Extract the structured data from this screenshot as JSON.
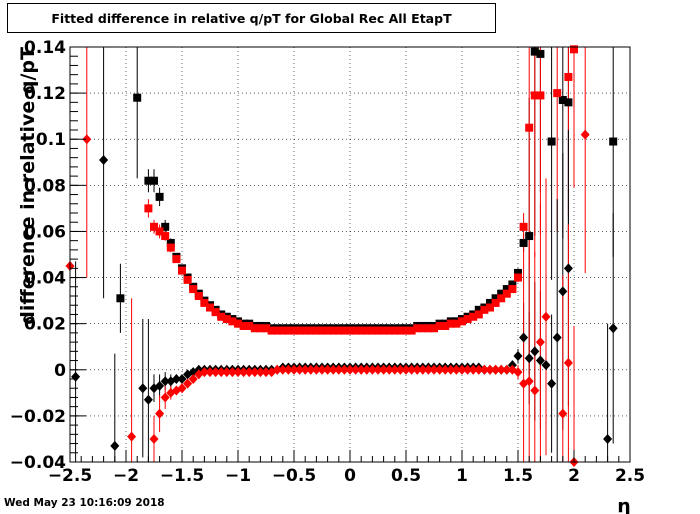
{
  "title": "Fitted difference in relative q/pT for Global Rec All EtapT",
  "timestamp": "Wed May 23 10:16:09 2018",
  "chart_data": {
    "type": "scatter",
    "title": "Fitted difference in relative q/pT for Global Rec All EtapT",
    "xlabel": "η",
    "ylabel": "difference in relative q/pT",
    "xlim": [
      -2.5,
      2.5
    ],
    "ylim": [
      -0.04,
      0.14
    ],
    "x_ticks": [
      -2.5,
      -2,
      -1.5,
      -1,
      -0.5,
      0,
      0.5,
      1,
      1.5,
      2,
      2.5
    ],
    "x_tick_labels": [
      "−2.5",
      "−2",
      "−1.5",
      "−1",
      "−0.5",
      "0",
      "0.5",
      "1",
      "1.5",
      "2",
      "2.5"
    ],
    "y_ticks": [
      -0.04,
      -0.02,
      0,
      0.02,
      0.04,
      0.06,
      0.08,
      0.1,
      0.12,
      0.14
    ],
    "y_tick_labels": [
      "−0.04",
      "−0.02",
      "0",
      "0.02",
      "0.04",
      "0.06",
      "0.08",
      "0.1",
      "0.12",
      "0.14"
    ],
    "grid": true,
    "colors": {
      "black": "#000000",
      "red": "#ff0000"
    },
    "series": [
      {
        "marker": "square",
        "color": "#000000",
        "x": [
          -2.05,
          -1.9,
          -1.8,
          -1.75,
          -1.7,
          -1.65,
          -1.6,
          -1.55,
          -1.5,
          -1.45,
          -1.4,
          -1.35,
          -1.3,
          -1.25,
          -1.2,
          -1.15,
          -1.1,
          -1.05,
          -1.0,
          -0.95,
          -0.9,
          -0.85,
          -0.8,
          -0.75,
          -0.7,
          -0.65,
          -0.6,
          -0.55,
          -0.5,
          -0.45,
          -0.4,
          -0.35,
          -0.3,
          -0.25,
          -0.2,
          -0.15,
          -0.1,
          -0.05,
          0.0,
          0.05,
          0.1,
          0.15,
          0.2,
          0.25,
          0.3,
          0.35,
          0.4,
          0.45,
          0.5,
          0.55,
          0.6,
          0.65,
          0.7,
          0.75,
          0.8,
          0.85,
          0.9,
          0.95,
          1.0,
          1.05,
          1.1,
          1.15,
          1.2,
          1.25,
          1.3,
          1.35,
          1.4,
          1.45,
          1.5,
          1.55,
          1.6,
          1.65,
          1.7,
          1.8,
          1.9,
          1.95,
          2.35
        ],
        "y": [
          0.031,
          0.118,
          0.082,
          0.082,
          0.075,
          0.062,
          0.055,
          0.049,
          0.044,
          0.04,
          0.036,
          0.033,
          0.03,
          0.028,
          0.026,
          0.024,
          0.023,
          0.022,
          0.021,
          0.02,
          0.02,
          0.019,
          0.019,
          0.019,
          0.018,
          0.018,
          0.018,
          0.018,
          0.018,
          0.018,
          0.018,
          0.018,
          0.018,
          0.018,
          0.018,
          0.018,
          0.018,
          0.018,
          0.018,
          0.018,
          0.018,
          0.018,
          0.018,
          0.018,
          0.018,
          0.018,
          0.018,
          0.018,
          0.018,
          0.018,
          0.019,
          0.019,
          0.019,
          0.019,
          0.02,
          0.02,
          0.021,
          0.021,
          0.022,
          0.023,
          0.024,
          0.026,
          0.027,
          0.029,
          0.031,
          0.033,
          0.035,
          0.037,
          0.042,
          0.055,
          0.058,
          0.138,
          0.137,
          0.099,
          0.117,
          0.116,
          0.099
        ],
        "err": [
          0.015,
          0.035,
          0.005,
          0.005,
          0.004,
          0.003,
          0.002,
          0.001,
          0.001,
          0.001,
          0.001,
          0.001,
          0.001,
          0.001,
          0.001,
          0.0,
          0.0,
          0.0,
          0.0,
          0.0,
          0.0,
          0.0,
          0.0,
          0.0,
          0.0,
          0.0,
          0.0,
          0.0,
          0.0,
          0.0,
          0.0,
          0.0,
          0.0,
          0.0,
          0.0,
          0.0,
          0.0,
          0.0,
          0.0,
          0.0,
          0.0,
          0.0,
          0.0,
          0.0,
          0.0,
          0.0,
          0.0,
          0.0,
          0.0,
          0.0,
          0.0,
          0.0,
          0.0,
          0.0,
          0.0,
          0.0,
          0.0,
          0.0,
          0.0,
          0.0,
          0.0,
          0.0,
          0.0,
          0.0,
          0.0,
          0.001,
          0.001,
          0.001,
          0.002,
          0.004,
          0.06,
          0.08,
          0.06,
          0.06,
          0.06,
          0.06,
          0.05
        ]
      },
      {
        "marker": "square",
        "color": "#ff0000",
        "x": [
          -1.8,
          -1.75,
          -1.7,
          -1.65,
          -1.6,
          -1.55,
          -1.5,
          -1.45,
          -1.4,
          -1.35,
          -1.3,
          -1.25,
          -1.2,
          -1.15,
          -1.1,
          -1.05,
          -1.0,
          -0.95,
          -0.9,
          -0.85,
          -0.8,
          -0.75,
          -0.7,
          -0.65,
          -0.6,
          -0.55,
          -0.5,
          -0.45,
          -0.4,
          -0.35,
          -0.3,
          -0.25,
          -0.2,
          -0.15,
          -0.1,
          -0.05,
          0.0,
          0.05,
          0.1,
          0.15,
          0.2,
          0.25,
          0.3,
          0.35,
          0.4,
          0.45,
          0.5,
          0.55,
          0.6,
          0.65,
          0.7,
          0.75,
          0.8,
          0.85,
          0.9,
          0.95,
          1.0,
          1.05,
          1.1,
          1.15,
          1.2,
          1.25,
          1.3,
          1.35,
          1.4,
          1.45,
          1.5,
          1.55,
          1.6,
          1.65,
          1.7,
          1.85,
          1.95,
          2.0
        ],
        "y": [
          0.07,
          0.062,
          0.06,
          0.058,
          0.053,
          0.048,
          0.043,
          0.039,
          0.035,
          0.032,
          0.029,
          0.027,
          0.025,
          0.023,
          0.022,
          0.021,
          0.02,
          0.019,
          0.019,
          0.018,
          0.018,
          0.018,
          0.017,
          0.017,
          0.017,
          0.017,
          0.017,
          0.017,
          0.017,
          0.017,
          0.017,
          0.017,
          0.017,
          0.017,
          0.017,
          0.017,
          0.017,
          0.017,
          0.017,
          0.017,
          0.017,
          0.017,
          0.017,
          0.017,
          0.017,
          0.017,
          0.017,
          0.017,
          0.018,
          0.018,
          0.018,
          0.018,
          0.019,
          0.019,
          0.02,
          0.02,
          0.021,
          0.022,
          0.023,
          0.024,
          0.026,
          0.027,
          0.029,
          0.031,
          0.033,
          0.035,
          0.04,
          0.062,
          0.105,
          0.119,
          0.119,
          0.12,
          0.127,
          0.139
        ],
        "err": [
          0.004,
          0.003,
          0.003,
          0.002,
          0.002,
          0.001,
          0.001,
          0.001,
          0.001,
          0.001,
          0.001,
          0.001,
          0.001,
          0.0,
          0.0,
          0.0,
          0.0,
          0.0,
          0.0,
          0.0,
          0.0,
          0.0,
          0.0,
          0.0,
          0.0,
          0.0,
          0.0,
          0.0,
          0.0,
          0.0,
          0.0,
          0.0,
          0.0,
          0.0,
          0.0,
          0.0,
          0.0,
          0.0,
          0.0,
          0.0,
          0.0,
          0.0,
          0.0,
          0.0,
          0.0,
          0.0,
          0.0,
          0.0,
          0.0,
          0.0,
          0.0,
          0.0,
          0.0,
          0.0,
          0.0,
          0.0,
          0.0,
          0.0,
          0.0,
          0.0,
          0.0,
          0.0,
          0.0,
          0.001,
          0.001,
          0.001,
          0.002,
          0.006,
          0.06,
          0.07,
          0.06,
          0.06,
          0.06,
          0.06
        ]
      },
      {
        "marker": "diamond",
        "color": "#000000",
        "x": [
          -2.45,
          -2.2,
          -2.1,
          -1.85,
          -1.8,
          -1.75,
          -1.7,
          -1.65,
          -1.6,
          -1.55,
          -1.5,
          -1.45,
          -1.4,
          -1.35,
          -1.3,
          -1.25,
          -1.2,
          -1.15,
          -1.1,
          -1.05,
          -1.0,
          -0.95,
          -0.9,
          -0.85,
          -0.8,
          -0.75,
          -0.7,
          -0.65,
          -0.6,
          -0.55,
          -0.5,
          -0.45,
          -0.4,
          -0.35,
          -0.3,
          -0.25,
          -0.2,
          -0.15,
          -0.1,
          -0.05,
          0.0,
          0.05,
          0.1,
          0.15,
          0.2,
          0.25,
          0.3,
          0.35,
          0.4,
          0.45,
          0.5,
          0.55,
          0.6,
          0.65,
          0.7,
          0.75,
          0.8,
          0.85,
          0.9,
          0.95,
          1.0,
          1.05,
          1.1,
          1.15,
          1.2,
          1.25,
          1.3,
          1.35,
          1.4,
          1.45,
          1.5,
          1.55,
          1.6,
          1.65,
          1.7,
          1.75,
          1.8,
          1.85,
          1.9,
          1.95,
          2.3,
          2.35
        ],
        "y": [
          -0.003,
          0.091,
          -0.033,
          -0.008,
          -0.013,
          -0.008,
          -0.007,
          -0.005,
          -0.005,
          -0.004,
          -0.004,
          -0.002,
          -0.001,
          0.0,
          0.0,
          0.0,
          0.0,
          0.0,
          0.0,
          0.0,
          0.0,
          0.0,
          0.0,
          0.0,
          0.0,
          0.0,
          0.0,
          0.0,
          0.001,
          0.001,
          0.001,
          0.001,
          0.001,
          0.001,
          0.001,
          0.001,
          0.001,
          0.001,
          0.001,
          0.001,
          0.001,
          0.001,
          0.001,
          0.001,
          0.001,
          0.001,
          0.001,
          0.001,
          0.001,
          0.001,
          0.001,
          0.001,
          0.001,
          0.001,
          0.001,
          0.001,
          0.001,
          0.001,
          0.001,
          0.001,
          0.001,
          0.001,
          0.001,
          0.001,
          0.0,
          0.0,
          0.0,
          0.0,
          0.0,
          0.002,
          0.006,
          0.014,
          0.005,
          0.008,
          0.004,
          0.002,
          -0.006,
          0.014,
          0.034,
          0.044,
          -0.03,
          0.018
        ],
        "err": [
          0.05,
          0.06,
          0.04,
          0.03,
          0.035,
          0.006,
          0.005,
          0.004,
          0.003,
          0.002,
          0.001,
          0.001,
          0.001,
          0.001,
          0.001,
          0.001,
          0.0,
          0.0,
          0.0,
          0.0,
          0.0,
          0.0,
          0.0,
          0.0,
          0.0,
          0.0,
          0.0,
          0.0,
          0.0,
          0.0,
          0.0,
          0.0,
          0.0,
          0.0,
          0.0,
          0.0,
          0.0,
          0.0,
          0.0,
          0.0,
          0.0,
          0.0,
          0.0,
          0.0,
          0.0,
          0.0,
          0.0,
          0.0,
          0.0,
          0.0,
          0.0,
          0.0,
          0.0,
          0.0,
          0.0,
          0.0,
          0.0,
          0.0,
          0.0,
          0.0,
          0.0,
          0.0,
          0.0,
          0.0,
          0.0,
          0.0,
          0.001,
          0.001,
          0.001,
          0.002,
          0.003,
          0.015,
          0.02,
          0.03,
          0.03,
          0.03,
          0.03,
          0.06,
          0.06,
          0.06,
          0.05,
          0.05
        ]
      },
      {
        "marker": "diamond",
        "color": "#ff0000",
        "x": [
          -2.5,
          -2.35,
          -1.95,
          -1.75,
          -1.7,
          -1.65,
          -1.6,
          -1.55,
          -1.5,
          -1.45,
          -1.4,
          -1.35,
          -1.3,
          -1.25,
          -1.2,
          -1.15,
          -1.1,
          -1.05,
          -1.0,
          -0.95,
          -0.9,
          -0.85,
          -0.8,
          -0.75,
          -0.7,
          -0.65,
          -0.6,
          -0.55,
          -0.5,
          -0.45,
          -0.4,
          -0.35,
          -0.3,
          -0.25,
          -0.2,
          -0.15,
          -0.1,
          -0.05,
          0.0,
          0.05,
          0.1,
          0.15,
          0.2,
          0.25,
          0.3,
          0.35,
          0.4,
          0.45,
          0.5,
          0.55,
          0.6,
          0.65,
          0.7,
          0.75,
          0.8,
          0.85,
          0.9,
          0.95,
          1.0,
          1.05,
          1.1,
          1.15,
          1.2,
          1.25,
          1.3,
          1.35,
          1.4,
          1.45,
          1.5,
          1.55,
          1.6,
          1.65,
          1.7,
          1.75,
          1.9,
          1.95,
          2.0,
          2.1
        ],
        "y": [
          0.045,
          0.1,
          -0.029,
          -0.03,
          -0.019,
          -0.012,
          -0.01,
          -0.009,
          -0.008,
          -0.006,
          -0.004,
          -0.002,
          -0.001,
          -0.001,
          -0.001,
          -0.001,
          -0.001,
          -0.001,
          -0.001,
          -0.001,
          -0.001,
          -0.001,
          -0.001,
          -0.001,
          -0.001,
          0.0,
          0.0,
          0.0,
          0.0,
          0.0,
          0.0,
          0.0,
          0.0,
          0.0,
          0.0,
          0.0,
          0.0,
          0.0,
          0.0,
          0.0,
          0.0,
          0.0,
          0.0,
          0.0,
          0.0,
          0.0,
          0.0,
          0.0,
          0.0,
          0.0,
          0.0,
          0.0,
          0.0,
          0.0,
          0.0,
          0.0,
          0.0,
          0.0,
          0.0,
          0.0,
          0.0,
          0.0,
          0.0,
          0.0,
          0.0,
          0.0,
          0.0,
          0.0,
          -0.001,
          -0.006,
          -0.005,
          -0.009,
          0.012,
          0.023,
          -0.019,
          0.003,
          -0.041,
          0.102
        ],
        "err": [
          0.05,
          0.06,
          0.06,
          0.01,
          0.008,
          0.005,
          0.003,
          0.002,
          0.002,
          0.001,
          0.001,
          0.001,
          0.001,
          0.001,
          0.0,
          0.0,
          0.0,
          0.0,
          0.0,
          0.0,
          0.0,
          0.0,
          0.0,
          0.0,
          0.0,
          0.0,
          0.0,
          0.0,
          0.0,
          0.0,
          0.0,
          0.0,
          0.0,
          0.0,
          0.0,
          0.0,
          0.0,
          0.0,
          0.0,
          0.0,
          0.0,
          0.0,
          0.0,
          0.0,
          0.0,
          0.0,
          0.0,
          0.0,
          0.0,
          0.0,
          0.0,
          0.0,
          0.0,
          0.0,
          0.0,
          0.0,
          0.0,
          0.0,
          0.0,
          0.0,
          0.0,
          0.0,
          0.0,
          0.0,
          0.0,
          0.0,
          0.001,
          0.002,
          0.003,
          0.06,
          0.06,
          0.06,
          0.06,
          0.06,
          0.06,
          0.06,
          0.06,
          0.06
        ]
      }
    ]
  }
}
